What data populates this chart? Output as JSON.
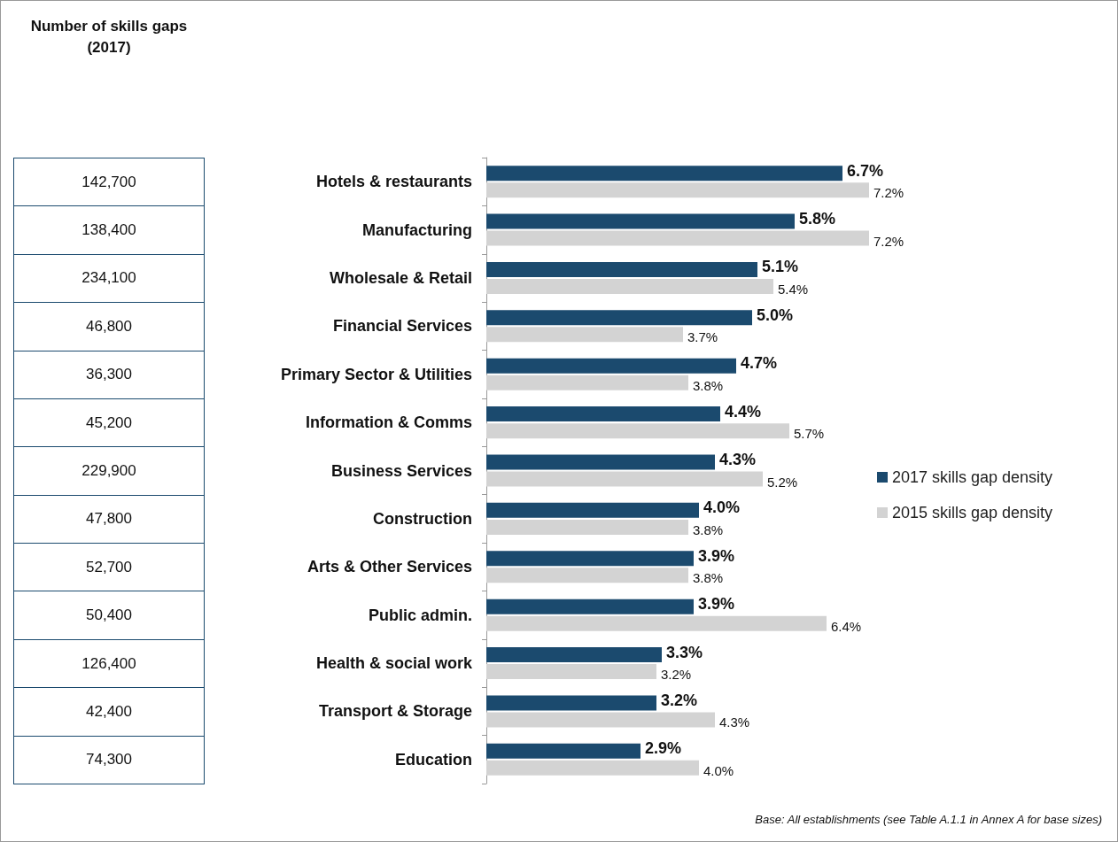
{
  "chart_data": [
    {
      "type": "other",
      "title": "Number of skills gaps (2017)",
      "value_labels": [
        "142,700",
        "138,400",
        "234,100",
        "46,800",
        "36,300",
        "45,200",
        "229,900",
        "47,800",
        "52,700",
        "50,400",
        "126,400",
        "42,400",
        "74,300"
      ]
    },
    {
      "type": "bar",
      "orientation": "horizontal",
      "categories": [
        "Hotels & restaurants",
        "Manufacturing",
        "Wholesale & Retail",
        "Financial Services",
        "Primary Sector & Utilities",
        "Information & Comms",
        "Business Services",
        "Construction",
        "Arts & Other Services",
        "Public admin.",
        "Health & social work",
        "Transport & Storage",
        "Education"
      ],
      "series": [
        {
          "name": "2017 skills gap density",
          "color": "#1b4a6e",
          "values": [
            6.7,
            5.8,
            5.1,
            5.0,
            4.7,
            4.4,
            4.3,
            4.0,
            3.9,
            3.9,
            3.3,
            3.2,
            2.9
          ],
          "value_labels": [
            "6.7%",
            "5.8%",
            "5.1%",
            "5.0%",
            "4.7%",
            "4.4%",
            "4.3%",
            "4.0%",
            "3.9%",
            "3.9%",
            "3.3%",
            "3.2%",
            "2.9%"
          ]
        },
        {
          "name": "2015 skills gap density",
          "color": "#d3d3d3",
          "values": [
            7.2,
            7.2,
            5.4,
            3.7,
            3.8,
            5.7,
            5.2,
            3.8,
            3.8,
            6.4,
            3.2,
            4.3,
            4.0
          ],
          "value_labels": [
            "7.2%",
            "7.2%",
            "5.4%",
            "3.7%",
            "3.8%",
            "5.7%",
            "5.2%",
            "3.8%",
            "3.8%",
            "6.4%",
            "3.2%",
            "4.3%",
            "4.0%"
          ]
        }
      ],
      "legend": "right",
      "annotations": [
        "Base: All establishments (see Table A.1.1 in Annex A for base sizes)"
      ]
    }
  ]
}
